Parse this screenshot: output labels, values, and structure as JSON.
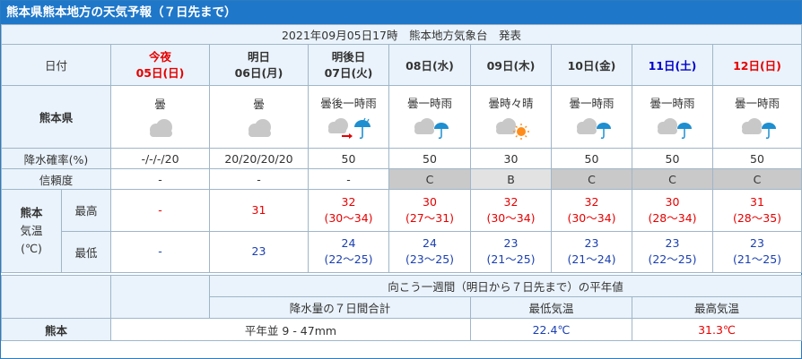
{
  "title": "熊本県熊本地方の天気予報（７日先まで）",
  "issued": "2021年09月05日17時　熊本地方気象台　発表",
  "labels": {
    "date": "日付",
    "region": "熊本県",
    "pop": "降水確率(%)",
    "reliability": "信頼度",
    "city": "熊本",
    "temp_a": "気温",
    "temp_b": "(℃)",
    "max": "最高",
    "min": "最低"
  },
  "days": [
    {
      "l1": "今夜",
      "l2": "05日(日)",
      "weather": "曇",
      "icon": "cloud-icon",
      "pop": "-/-/-/20",
      "rel": "-",
      "max": "-",
      "max_range": "",
      "min": "-",
      "min_range": ""
    },
    {
      "l1": "明日",
      "l2": "06日(月)",
      "weather": "曇",
      "icon": "cloud-icon",
      "pop": "20/20/20/20",
      "rel": "-",
      "max": "31",
      "max_range": "",
      "min": "23",
      "min_range": ""
    },
    {
      "l1": "明後日",
      "l2": "07日(火)",
      "weather": "曇後一時雨",
      "icon": "cloud-then-rain-icon",
      "pop": "50",
      "rel": "-",
      "max": "32",
      "max_range": "(30～34)",
      "min": "24",
      "min_range": "(22～25)"
    },
    {
      "l1": "08日(水)",
      "l2": "",
      "weather": "曇一時雨",
      "icon": "cloud-rain-icon",
      "pop": "50",
      "rel": "C",
      "max": "30",
      "max_range": "(27～31)",
      "min": "24",
      "min_range": "(23～25)"
    },
    {
      "l1": "09日(木)",
      "l2": "",
      "weather": "曇時々晴",
      "icon": "cloud-sun-icon",
      "pop": "30",
      "rel": "B",
      "max": "32",
      "max_range": "(30～34)",
      "min": "23",
      "min_range": "(21～25)"
    },
    {
      "l1": "10日(金)",
      "l2": "",
      "weather": "曇一時雨",
      "icon": "cloud-rain-icon",
      "pop": "50",
      "rel": "C",
      "max": "32",
      "max_range": "(30～34)",
      "min": "23",
      "min_range": "(21～24)"
    },
    {
      "l1": "11日(土)",
      "l2": "",
      "weather": "曇一時雨",
      "icon": "cloud-rain-icon",
      "pop": "50",
      "rel": "C",
      "max": "30",
      "max_range": "(28～34)",
      "min": "23",
      "min_range": "(22～25)"
    },
    {
      "l1": "12日(日)",
      "l2": "",
      "weather": "曇一時雨",
      "icon": "cloud-rain-icon",
      "pop": "50",
      "rel": "C",
      "max": "31",
      "max_range": "(28～35)",
      "min": "23",
      "min_range": "(21～25)"
    }
  ],
  "normals": {
    "header": "向こう一週間（明日から７日先まで）の平年値",
    "col_precip": "降水量の７日間合計",
    "col_min": "最低気温",
    "col_max": "最高気温",
    "city": "熊本",
    "precip": "平年並 9 - 47mm",
    "min": "22.4℃",
    "max": "31.3℃"
  },
  "colors": {
    "header_bg": "#1f77c9",
    "sunday": "#e60000",
    "saturday": "#0000cc",
    "reliability_c": "#c9c9c9",
    "reliability_b": "#e2e2e2"
  }
}
